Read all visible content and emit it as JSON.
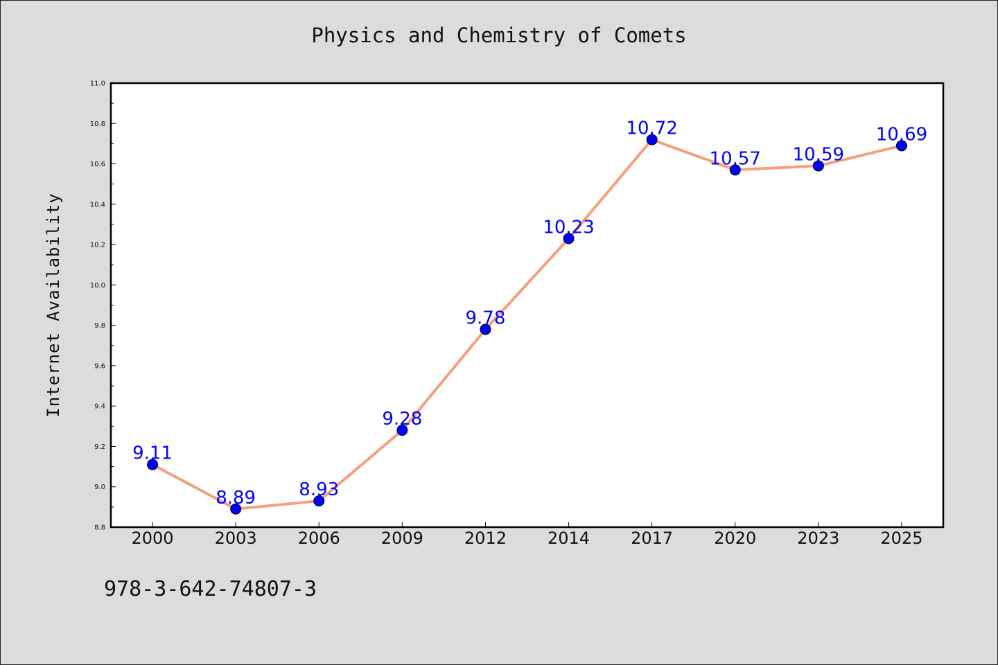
{
  "chart_data": {
    "type": "line",
    "title": "Physics and Chemistry of Comets",
    "xlabel": "",
    "ylabel": "Internet Availability",
    "categories": [
      "2000",
      "2003",
      "2006",
      "2009",
      "2012",
      "2014",
      "2017",
      "2020",
      "2023",
      "2025"
    ],
    "series": [
      {
        "values": [
          9.11,
          8.89,
          8.93,
          9.28,
          9.78,
          10.23,
          10.72,
          10.57,
          10.59,
          10.69
        ],
        "data_labels": [
          "9.11",
          "8.89",
          "8.93",
          "9.28",
          "9.78",
          "10.23",
          "10.72",
          "10.57",
          "10.59",
          "10.69"
        ],
        "line_color": "#f4a07c",
        "marker_color": "#0000ff"
      }
    ],
    "ylim": [
      8.8,
      11.0
    ],
    "yticks": [
      "8.8",
      "9.0",
      "9.2",
      "9.4",
      "9.6",
      "9.8",
      "10.0",
      "10.2",
      "10.4",
      "10.6",
      "10.8",
      "11.0"
    ],
    "grid": false,
    "legend": "none"
  },
  "footer_text": "978-3-642-74807-3",
  "colors": {
    "background": "#dcdcdc",
    "plot_area": "#ffffff",
    "line": "#f4a07c",
    "marker": "#0000ff",
    "data_label": "#0000ff"
  }
}
